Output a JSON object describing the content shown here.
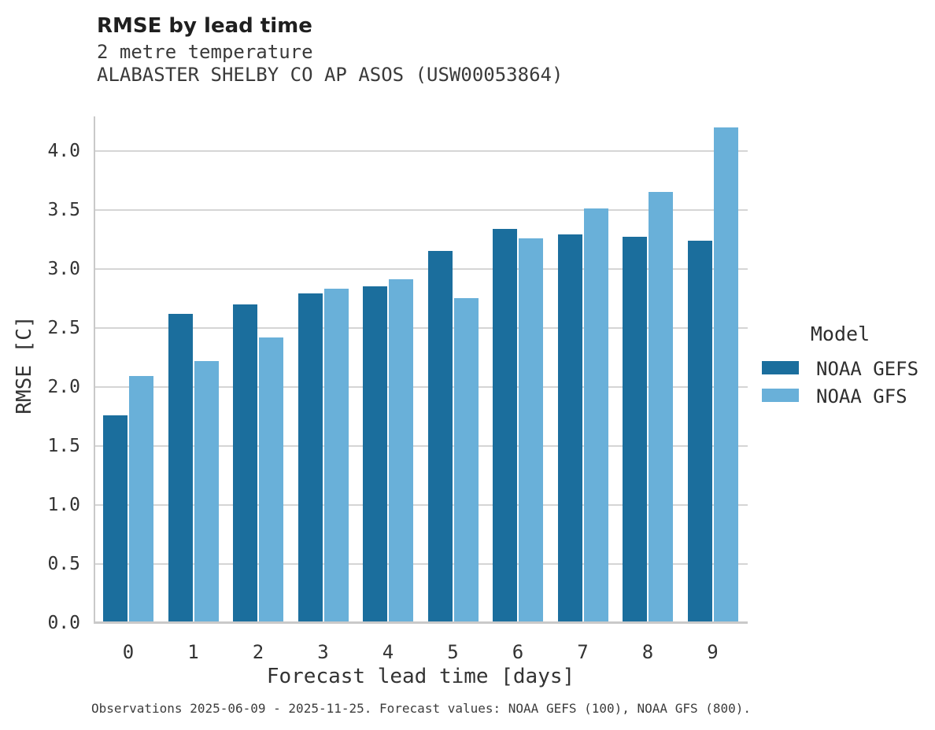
{
  "header": {
    "title": "RMSE by lead time",
    "subtitle1": "2 metre temperature",
    "subtitle2": "ALABASTER SHELBY CO AP ASOS (USW00053864)"
  },
  "chart_data": {
    "type": "bar",
    "title": "RMSE by lead time",
    "subtitle": [
      "2 metre temperature",
      "ALABASTER SHELBY CO AP ASOS (USW00053864)"
    ],
    "categories": [
      "0",
      "1",
      "2",
      "3",
      "4",
      "5",
      "6",
      "7",
      "8",
      "9"
    ],
    "series": [
      {
        "name": "NOAA GEFS",
        "color": "#1b6e9d",
        "values": [
          1.76,
          2.62,
          2.7,
          2.79,
          2.85,
          3.15,
          3.34,
          3.29,
          3.27,
          3.24
        ]
      },
      {
        "name": "NOAA GFS",
        "color": "#69b0d9",
        "values": [
          2.09,
          2.22,
          2.42,
          2.83,
          2.91,
          2.75,
          3.26,
          3.51,
          3.65,
          4.2
        ]
      }
    ],
    "xlabel": "Forecast lead time [days]",
    "ylabel": "RMSE [C]",
    "ylim": [
      0.0,
      4.28
    ],
    "ytick_step": 0.5,
    "ytick_labels": [
      "0.0",
      "0.5",
      "1.0",
      "1.5",
      "2.0",
      "2.5",
      "3.0",
      "3.5",
      "4.0"
    ],
    "grid": true,
    "legend": {
      "title": "Model",
      "position": "right",
      "entries": [
        "NOAA GEFS",
        "NOAA GFS"
      ]
    }
  },
  "footer": {
    "caption": "Observations 2025-06-09 - 2025-11-25. Forecast values: NOAA GEFS (100), NOAA GFS (800)."
  },
  "colors": {
    "gefs_bar": "#1b6e9d",
    "gfs_bar": "#69b0d9",
    "gridline": "#d5d5d5",
    "spine": "#c9c9c9",
    "background": "#ffffff"
  }
}
